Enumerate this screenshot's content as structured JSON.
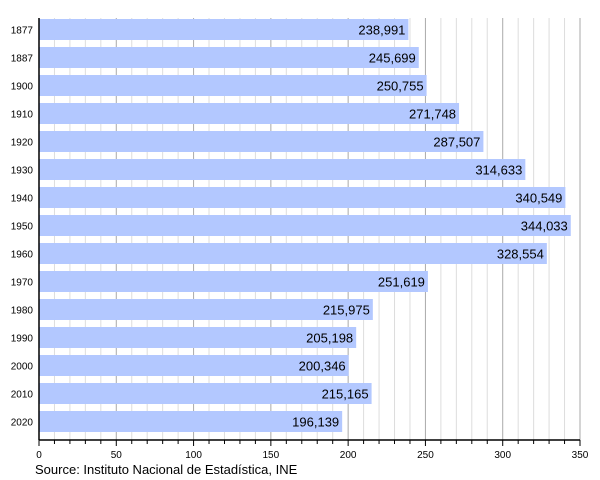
{
  "chart_data": {
    "type": "bar",
    "orientation": "horizontal",
    "categories": [
      "1877",
      "1887",
      "1900",
      "1910",
      "1920",
      "1930",
      "1940",
      "1950",
      "1960",
      "1970",
      "1980",
      "1990",
      "2000",
      "2010",
      "2020"
    ],
    "values": [
      238991,
      245699,
      250755,
      271748,
      287507,
      314633,
      340549,
      344033,
      328554,
      251619,
      215975,
      205198,
      200346,
      215165,
      196139
    ],
    "value_labels": [
      "238,991",
      "245,699",
      "250,755",
      "271,748",
      "287,507",
      "314,633",
      "340,549",
      "344,033",
      "328,554",
      "251,619",
      "215,975",
      "205,198",
      "200,346",
      "215,165",
      "196,139"
    ],
    "xlim": [
      0,
      350
    ],
    "x_unit_scale": 1000,
    "x_ticks": [
      "0",
      "50",
      "100",
      "150",
      "200",
      "250",
      "300",
      "350"
    ],
    "grid": true,
    "bar_color": "#b3c8ff"
  },
  "source": "Source: Instituto Nacional de Estadística, INE"
}
